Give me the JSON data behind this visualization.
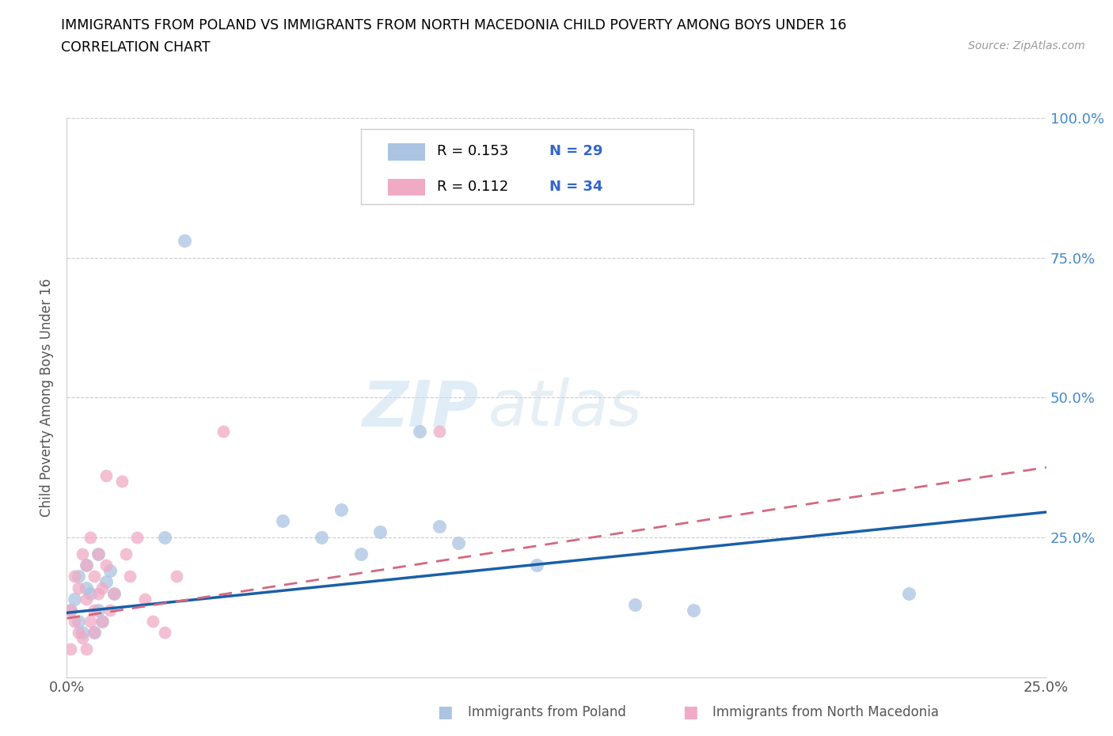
{
  "title_line1": "IMMIGRANTS FROM POLAND VS IMMIGRANTS FROM NORTH MACEDONIA CHILD POVERTY AMONG BOYS UNDER 16",
  "title_line2": "CORRELATION CHART",
  "source": "Source: ZipAtlas.com",
  "ylabel": "Child Poverty Among Boys Under 16",
  "xlim": [
    0.0,
    0.25
  ],
  "ylim": [
    0.0,
    1.0
  ],
  "xticks": [
    0.0,
    0.05,
    0.1,
    0.15,
    0.2,
    0.25
  ],
  "xticklabels": [
    "0.0%",
    "",
    "",
    "",
    "",
    "25.0%"
  ],
  "yticks": [
    0.0,
    0.25,
    0.5,
    0.75,
    1.0
  ],
  "yticklabels": [
    "",
    "25.0%",
    "50.0%",
    "75.0%",
    "100.0%"
  ],
  "poland_R": 0.153,
  "poland_N": 29,
  "macedonia_R": 0.112,
  "macedonia_N": 34,
  "poland_color": "#aac4e2",
  "macedonia_color": "#f0aac4",
  "poland_line_color": "#1a5fa8",
  "macedonia_line_color": "#d46880",
  "watermark_zip": "ZIP",
  "watermark_atlas": "atlas",
  "poland_x": [
    0.001,
    0.002,
    0.003,
    0.003,
    0.004,
    0.005,
    0.005,
    0.006,
    0.007,
    0.008,
    0.008,
    0.009,
    0.01,
    0.011,
    0.012,
    0.025,
    0.03,
    0.055,
    0.065,
    0.07,
    0.075,
    0.08,
    0.09,
    0.095,
    0.1,
    0.12,
    0.145,
    0.16,
    0.215
  ],
  "poland_y": [
    0.12,
    0.14,
    0.1,
    0.18,
    0.08,
    0.16,
    0.2,
    0.15,
    0.08,
    0.12,
    0.22,
    0.1,
    0.17,
    0.19,
    0.15,
    0.25,
    0.78,
    0.28,
    0.25,
    0.3,
    0.22,
    0.26,
    0.44,
    0.27,
    0.24,
    0.2,
    0.13,
    0.12,
    0.15
  ],
  "macedonia_x": [
    0.001,
    0.001,
    0.002,
    0.002,
    0.003,
    0.003,
    0.004,
    0.004,
    0.005,
    0.005,
    0.005,
    0.006,
    0.006,
    0.007,
    0.007,
    0.007,
    0.008,
    0.008,
    0.009,
    0.009,
    0.01,
    0.01,
    0.011,
    0.012,
    0.014,
    0.015,
    0.016,
    0.018,
    0.02,
    0.022,
    0.025,
    0.028,
    0.04,
    0.095
  ],
  "macedonia_y": [
    0.12,
    0.05,
    0.18,
    0.1,
    0.08,
    0.16,
    0.22,
    0.07,
    0.14,
    0.2,
    0.05,
    0.1,
    0.25,
    0.12,
    0.18,
    0.08,
    0.15,
    0.22,
    0.1,
    0.16,
    0.36,
    0.2,
    0.12,
    0.15,
    0.35,
    0.22,
    0.18,
    0.25,
    0.14,
    0.1,
    0.08,
    0.18,
    0.44,
    0.44
  ],
  "poland_trend_x": [
    0.0,
    0.25
  ],
  "poland_trend_y": [
    0.115,
    0.295
  ],
  "macedonia_trend_x": [
    0.0,
    0.25
  ],
  "macedonia_trend_y": [
    0.105,
    0.375
  ]
}
